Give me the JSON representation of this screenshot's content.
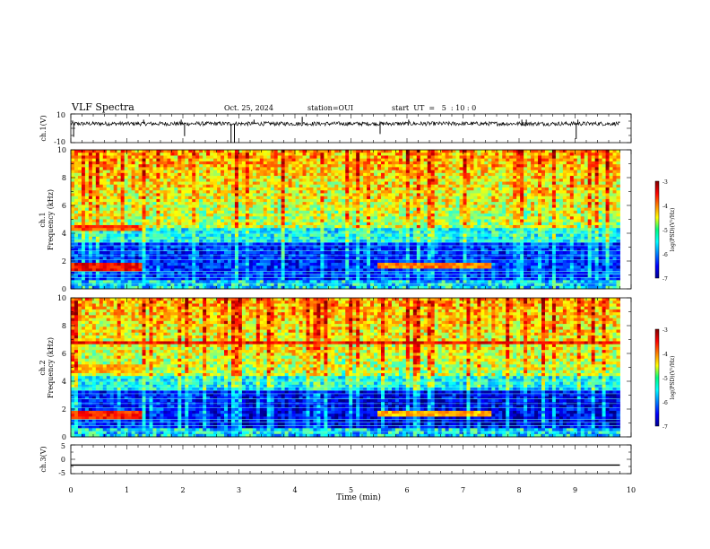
{
  "header": {
    "title": "VLF Spectra",
    "date": "Oct. 25, 2024",
    "station": "station=OUI",
    "start": "start  UT  =   5  : 10 : 0"
  },
  "chart_data": [
    {
      "type": "line",
      "panel": "ch1-waveform",
      "ylabel": "ch.1(V)",
      "ylim": [
        -10,
        10
      ],
      "y_ticks": [
        "10",
        "-10"
      ],
      "baseline": 3.2,
      "noise_band": [
        1.8,
        4.6
      ],
      "spikes": [
        {
          "t": 0.05,
          "v": -6.0
        },
        {
          "t": 1.3,
          "v": 6.0
        },
        {
          "t": 1.97,
          "v": 6.0
        },
        {
          "t": 2.03,
          "v": -5.5
        },
        {
          "t": 2.86,
          "v": -10.0
        },
        {
          "t": 2.92,
          "v": -10.0
        },
        {
          "t": 3.27,
          "v": 6.0
        },
        {
          "t": 4.13,
          "v": 8.0
        },
        {
          "t": 5.52,
          "v": -4.0
        },
        {
          "t": 6.03,
          "v": 6.0
        },
        {
          "t": 8.05,
          "v": 6.0
        },
        {
          "t": 8.13,
          "v": 6.0
        },
        {
          "t": 9.02,
          "v": -7.5
        },
        {
          "t": 9.05,
          "v": 6.0
        }
      ]
    },
    {
      "type": "heatmap",
      "panel": "ch1-spectrogram",
      "ylabel": "ch.1",
      "ylabel2": "Frequency (kHz)",
      "ylim": [
        0,
        10
      ],
      "y_ticks": [
        "0",
        "2",
        "4",
        "6",
        "8",
        "10"
      ],
      "colorbar": {
        "label": "log(PSD)(V²/Hz)",
        "range": [
          -7,
          -3
        ],
        "ticks": [
          "-3",
          "-4",
          "-5",
          "-6",
          "-7"
        ]
      },
      "bands": [
        {
          "t0": 0,
          "t1": 1.3,
          "f0": 1.35,
          "f1": 1.85,
          "level": -3.5
        },
        {
          "t0": 0,
          "t1": 1.3,
          "f0": 4.2,
          "f1": 4.5,
          "level": -3.8
        },
        {
          "t0": 5.5,
          "t1": 7.5,
          "f0": 1.4,
          "f1": 1.9,
          "level": -4.0
        }
      ]
    },
    {
      "type": "heatmap",
      "panel": "ch2-spectrogram",
      "ylabel": "ch.2",
      "ylabel2": "Frequency (kHz)",
      "ylim": [
        0,
        10
      ],
      "y_ticks": [
        "0",
        "2",
        "4",
        "6",
        "8",
        "10"
      ],
      "colorbar": {
        "label": "log(PSD)(V²/Hz)",
        "range": [
          -7,
          -3
        ],
        "ticks": [
          "-3",
          "-4",
          "-5",
          "-6",
          "-7"
        ]
      },
      "bands": [
        {
          "t0": 0,
          "t1": 1.3,
          "f0": 1.3,
          "f1": 1.8,
          "level": -3.6
        },
        {
          "t0": 0,
          "t1": 1.3,
          "f0": 4.6,
          "f1": 5.2,
          "level": -4.2
        },
        {
          "t0": 5.5,
          "t1": 7.5,
          "f0": 1.4,
          "f1": 1.8,
          "level": -4.2
        },
        {
          "t0": 0,
          "t1": 9.8,
          "f0": 6.7,
          "f1": 6.8,
          "level": -3.5
        }
      ]
    },
    {
      "type": "line",
      "panel": "ch3-waveform",
      "ylabel": "ch.3(V)",
      "ylim": [
        -5,
        5
      ],
      "y_ticks": [
        "5",
        "0",
        "-5"
      ],
      "x": [
        0,
        9.8
      ],
      "values": [
        -2.0,
        -2.0
      ]
    }
  ],
  "x_axis": {
    "xlabel": "Time (min)",
    "xlim": [
      0,
      10
    ],
    "ticks": [
      "0",
      "1",
      "2",
      "3",
      "4",
      "5",
      "6",
      "7",
      "8",
      "9",
      "10"
    ],
    "data_end": 9.8
  }
}
